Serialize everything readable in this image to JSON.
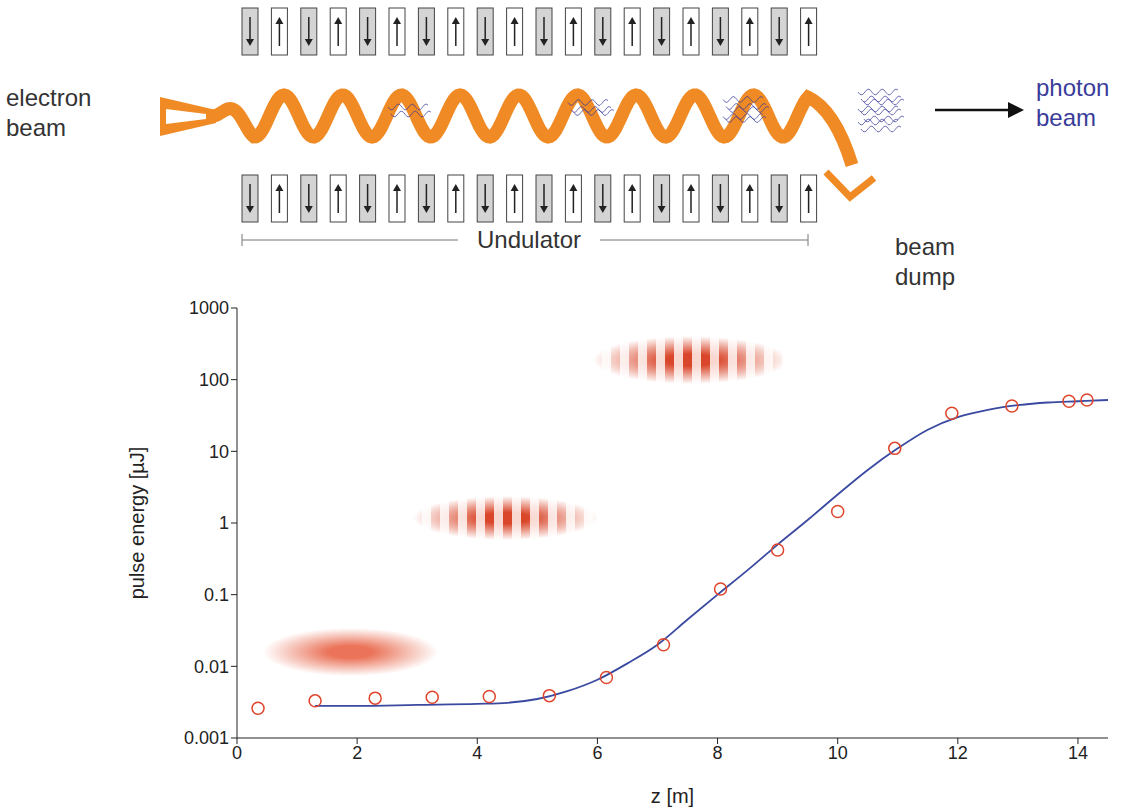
{
  "diagram": {
    "electron_beam": "electron beam",
    "photon_beam": "photon beam",
    "undulator": "Undulator",
    "beam_dump": "beam dump"
  },
  "chart_data": {
    "type": "scatter",
    "xlabel": "z [m]",
    "ylabel": "pulse energy [µJ]",
    "log": "y",
    "grid": false,
    "xlim": [
      0,
      14.5
    ],
    "xticks": [
      0,
      2,
      4,
      6,
      8,
      10,
      12,
      14
    ],
    "ylim": [
      0.001,
      1000
    ],
    "yticks": [
      0.001,
      0.01,
      0.1,
      1,
      10,
      100,
      1000
    ],
    "series": [
      {
        "type": "scatter",
        "color": "#e0452c",
        "marker": "circle",
        "x": [
          0.35,
          1.3,
          2.3,
          3.25,
          4.2,
          5.2,
          6.15,
          7.1,
          8.05,
          9.0,
          10.0,
          10.95,
          11.9,
          12.9,
          13.85,
          14.15
        ],
        "values": [
          0.0026,
          0.0033,
          0.0036,
          0.0037,
          0.0038,
          0.0039,
          0.007,
          0.02,
          0.12,
          0.42,
          1.45,
          11,
          34,
          43,
          50,
          52
        ]
      },
      {
        "type": "line",
        "color": "#3a4aa0",
        "line_style": "solid",
        "x": [
          1.3,
          2,
          3,
          4,
          4.5,
          5,
          5.5,
          6,
          6.5,
          7,
          7.5,
          8,
          8.5,
          9,
          9.5,
          10,
          10.5,
          11,
          11.5,
          12,
          12.5,
          13,
          13.5,
          14,
          14.5
        ],
        "values": [
          0.0028,
          0.0028,
          0.0029,
          0.003,
          0.0031,
          0.0035,
          0.0045,
          0.0065,
          0.011,
          0.02,
          0.045,
          0.1,
          0.22,
          0.5,
          1.1,
          2.5,
          5.5,
          11,
          20,
          30,
          38,
          44,
          48,
          50,
          52
        ]
      }
    ]
  }
}
